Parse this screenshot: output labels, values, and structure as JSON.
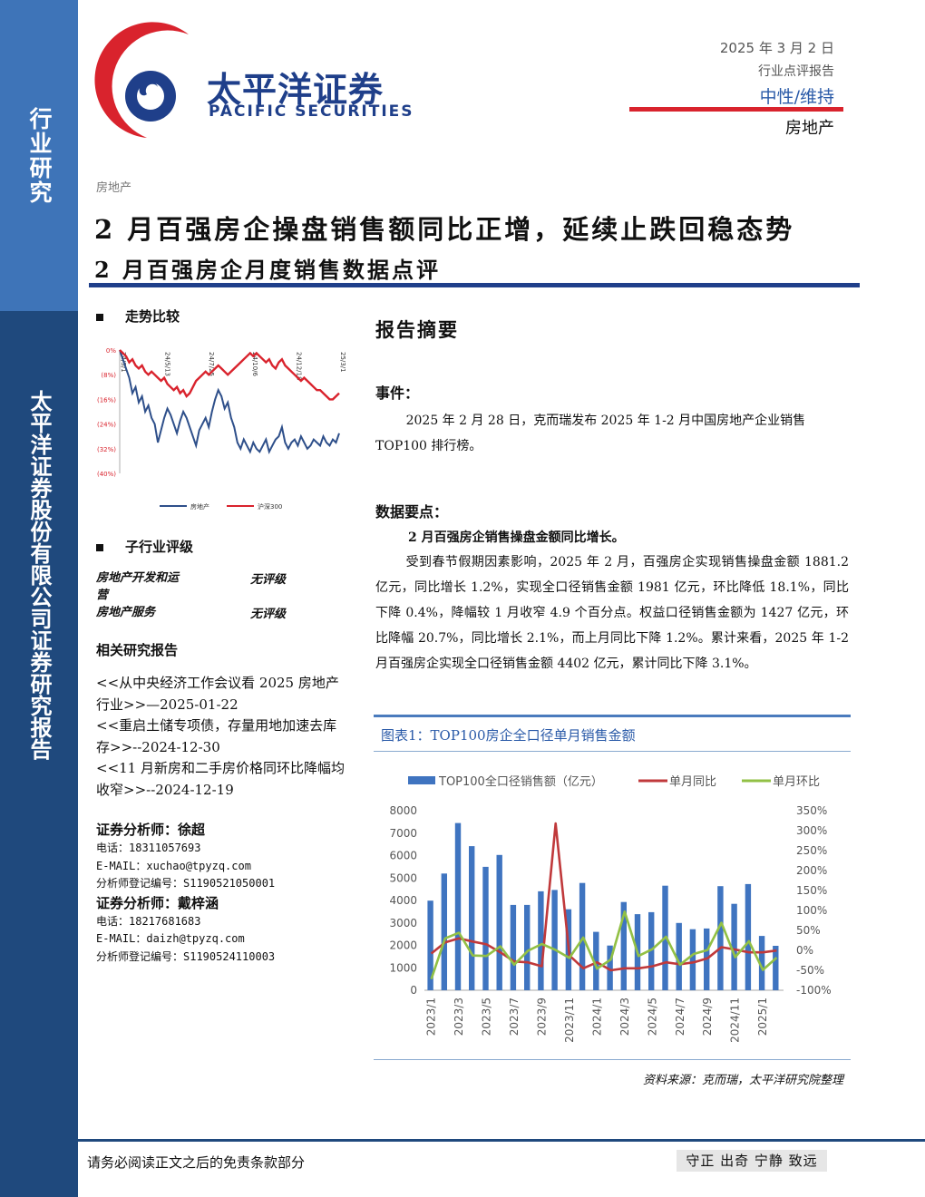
{
  "sidebar": {
    "label": "行业研究",
    "company": "太平洋证券股份有限公司证券研究报告"
  },
  "logo": {
    "name_cn": "太平洋证券",
    "name_en": "PACIFIC SECURITIES",
    "brand_red": "#d9232d",
    "brand_blue": "#1f3f8a"
  },
  "header": {
    "date": "2025 年 3 月 2 日",
    "report_type": "行业点评报告",
    "rating": "中性/维持",
    "industry": "房地产"
  },
  "breadcrumb": "房地产",
  "title": "2 月百强房企操盘销售额同比正增，延续止跌回稳态势",
  "subtitle": "2 月百强房企月度销售数据点评",
  "left": {
    "trend_heading": "走势比较",
    "subindustry_heading": "子行业评级",
    "subindustries": [
      {
        "name": "房地产开发和运营",
        "rating": "无评级"
      },
      {
        "name": "房地产服务",
        "rating": "无评级"
      }
    ],
    "related_heading": "相关研究报告",
    "related_reports": [
      "<<从中央经济工作会议看 2025 房地产行业>>—2025-01-22",
      "<<重启土储专项债，存量用地加速去库存>>--2024-12-30",
      "<<11 月新房和二手房价格同环比降幅均收窄>>--2024-12-19"
    ],
    "analysts": [
      {
        "name": "证券分析师：徐超",
        "phone": "电话：18311057693",
        "email": "E-MAIL：xuchao@tpyzq.com",
        "reg": "分析师登记编号：S1190521050001"
      },
      {
        "name": "证券分析师：戴梓涵",
        "phone": "电话：18217681683",
        "email": "E-MAIL：daizh@tpyzq.com",
        "reg": "分析师登记编号：S1190524110003"
      }
    ]
  },
  "summary": {
    "heading": "报告摘要",
    "event_heading": "事件：",
    "event_text": "2025 年 2 月 28 日，克而瑞发布 2025 年 1-2 月中国房地产企业销售 TOP100 排行榜。",
    "data_heading": "数据要点：",
    "data_subheading": "2 月百强房企销售操盘金额同比增长。",
    "data_text": "受到春节假期因素影响，2025 年 2 月，百强房企实现销售操盘金额 1881.2 亿元，同比增长 1.2%，实现全口径销售金额 1981 亿元，环比降低 18.1%，同比下降 0.4%，降幅较 1 月收窄 4.9 个百分点。权益口径销售金额为 1427 亿元，环比降幅 20.7%，同比增长 2.1%，而上月同比下降 1.2%。累计来看，2025 年 1-2 月百强房企实现全口径销售金额 4402 亿元，累计同比下降 3.1%。"
  },
  "figure": {
    "title": "图表1：TOP100房企全口径单月销售金额",
    "source": "资料来源：克而瑞，太平洋研究院整理"
  },
  "footer": {
    "disclaimer": "请务必阅读正文之后的免责条款部分",
    "motto": "守正 出奇 宁静 致远"
  },
  "chart_data": [
    {
      "type": "line",
      "title": "走势比较",
      "x_tick_labels": [
        "24/3/1",
        "24/5/13",
        "24/7/25",
        "24/10/6",
        "24/12/18",
        "25/3/1"
      ],
      "y_tick_labels": [
        "0%",
        "(8%)",
        "(16%)",
        "(24%)",
        "(32%)",
        "(40%)"
      ],
      "ylim": [
        -40,
        0
      ],
      "legend_position": "bottom",
      "series": [
        {
          "name": "房地产",
          "color": "#2e4f8a",
          "values": [
            0,
            -3,
            -6,
            -9,
            -14,
            -12,
            -17,
            -15,
            -20,
            -18,
            -22,
            -24,
            -30,
            -26,
            -22,
            -19,
            -21,
            -24,
            -27,
            -23,
            -20,
            -22,
            -25,
            -28,
            -31,
            -26,
            -24,
            -22,
            -25,
            -20,
            -16,
            -13,
            -15,
            -19,
            -17,
            -22,
            -25,
            -30,
            -32,
            -29,
            -31,
            -33,
            -30,
            -32,
            -33,
            -31,
            -29,
            -33,
            -31,
            -29,
            -28,
            -25,
            -30,
            -32,
            -30,
            -29,
            -31,
            -28,
            -30,
            -32,
            -31,
            -29,
            -30,
            -31,
            -28,
            -30,
            -31,
            -29,
            -30,
            -27
          ]
        },
        {
          "name": "沪深300",
          "color": "#d9232d",
          "values": [
            0,
            -1,
            -2,
            -4,
            -3,
            -5,
            -6,
            -5,
            -7,
            -8,
            -7,
            -8,
            -9,
            -10,
            -9,
            -11,
            -12,
            -13,
            -12,
            -14,
            -13,
            -15,
            -14,
            -12,
            -10,
            -9,
            -8,
            -7,
            -8,
            -7,
            -6,
            -5,
            -6,
            -7,
            -8,
            -7,
            -6,
            -5,
            -4,
            -3,
            -2,
            -1,
            -2,
            -1,
            -2,
            -3,
            -4,
            -3,
            -5,
            -6,
            -4,
            -3,
            -5,
            -6,
            -7,
            -8,
            -9,
            -10,
            -9,
            -10,
            -11,
            -12,
            -13,
            -13,
            -14,
            -15,
            -16,
            -16,
            -15,
            -14
          ]
        }
      ]
    },
    {
      "type": "bar",
      "title": "",
      "categories": [
        "2023/1",
        "2023/2",
        "2023/3",
        "2023/4",
        "2023/5",
        "2023/6",
        "2023/7",
        "2023/8",
        "2023/9",
        "2023/10",
        "2023/11",
        "2023/12",
        "2024/1",
        "2024/2",
        "2024/3",
        "2024/4",
        "2024/5",
        "2024/6",
        "2024/7",
        "2024/8",
        "2024/9",
        "2024/10",
        "2024/11",
        "2024/12",
        "2025/1",
        "2025/2"
      ],
      "x_tick_labels": [
        "2023/1",
        "2023/3",
        "2023/5",
        "2023/7",
        "2023/9",
        "2023/11",
        "2024/1",
        "2024/3",
        "2024/5",
        "2024/7",
        "2024/9",
        "2024/11",
        "2025/1"
      ],
      "y_left": {
        "ylim": [
          0,
          8000
        ],
        "ticks": [
          0,
          1000,
          2000,
          3000,
          4000,
          5000,
          6000,
          7000,
          8000
        ]
      },
      "y_right": {
        "ylim": [
          -100,
          350
        ],
        "ticks": [
          "-100%",
          "-50%",
          "0%",
          "50%",
          "100%",
          "150%",
          "200%",
          "250%",
          "300%",
          "350%"
        ]
      },
      "legend_position": "top",
      "series": [
        {
          "name": "TOP100全口径销售额（亿元）",
          "kind": "bar",
          "axis": "left",
          "color": "#3f74c0",
          "values": [
            3990,
            5200,
            7450,
            6420,
            5500,
            6030,
            3800,
            3800,
            4410,
            4470,
            3610,
            4780,
            2600,
            1990,
            3930,
            3390,
            3480,
            4660,
            3000,
            2720,
            2750,
            4640,
            3850,
            4730,
            2420,
            1981
          ]
        },
        {
          "name": "单月同比",
          "kind": "line",
          "axis": "right",
          "color": "#c0393b",
          "values": [
            -8,
            20,
            30,
            22,
            15,
            -5,
            -28,
            -30,
            -40,
            318,
            -13,
            -45,
            -30,
            -50,
            -45,
            -45,
            -40,
            -30,
            -35,
            -30,
            -20,
            8,
            2,
            -5,
            -5,
            -0.4
          ]
        },
        {
          "name": "单月环比",
          "kind": "line",
          "axis": "right",
          "color": "#92c045",
          "values": [
            -72,
            30,
            44,
            -13,
            -14,
            10,
            -36,
            -1,
            16,
            1,
            -19,
            32,
            -46,
            -23,
            97,
            -14,
            3,
            34,
            -36,
            -9,
            1,
            69,
            -17,
            23,
            -49,
            -18.1
          ]
        }
      ]
    }
  ]
}
